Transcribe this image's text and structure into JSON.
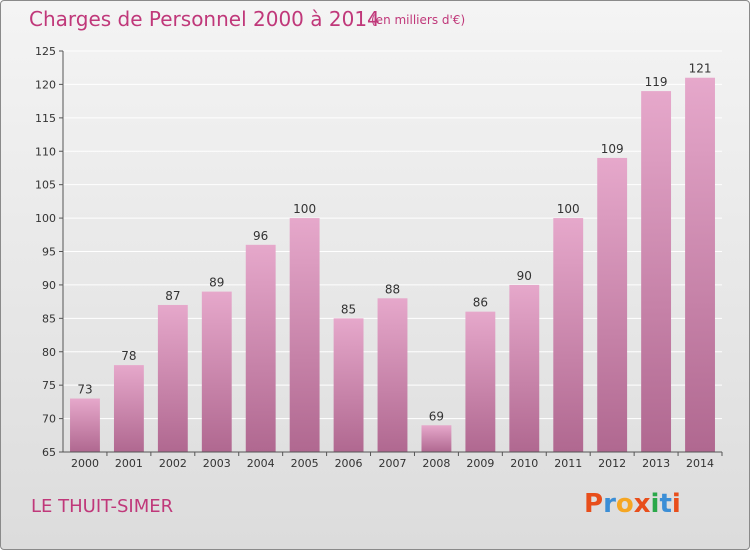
{
  "header": {
    "title": "Charges de Personnel 2000 à 2014",
    "subtitle": "(en milliers d'€)"
  },
  "footer": {
    "commune": "LE THUIT-SIMER",
    "logo_text": "Proxiti"
  },
  "colors": {
    "bar_top": "#e6a8cb",
    "bar_bottom": "#b06890",
    "title": "#c0387a",
    "logo": [
      "#e84e1b",
      "#3b8ed6",
      "#f5a623",
      "#e84e1b",
      "#2aa84a",
      "#3b8ed6",
      "#e84e1b"
    ]
  },
  "chart_data": {
    "type": "bar",
    "title": "Charges de Personnel 2000 à 2014",
    "subtitle": "(en milliers d'€)",
    "categories": [
      "2000",
      "2001",
      "2002",
      "2003",
      "2004",
      "2005",
      "2006",
      "2007",
      "2008",
      "2009",
      "2010",
      "2011",
      "2012",
      "2013",
      "2014"
    ],
    "values": [
      73,
      78,
      87,
      89,
      96,
      100,
      85,
      88,
      69,
      86,
      90,
      100,
      109,
      119,
      121
    ],
    "ylim": [
      65,
      125
    ],
    "yticks": [
      65,
      70,
      75,
      80,
      85,
      90,
      95,
      100,
      105,
      110,
      115,
      120,
      125
    ],
    "grid": true,
    "xlabel": "",
    "ylabel": ""
  }
}
